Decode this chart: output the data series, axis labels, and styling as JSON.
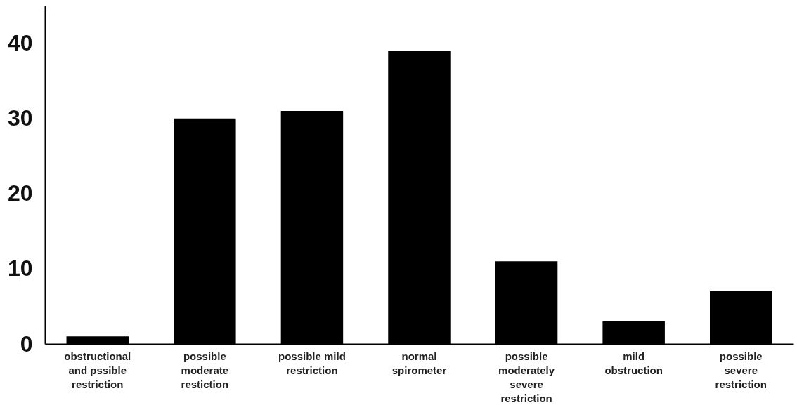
{
  "chart_data": {
    "type": "bar",
    "categories": [
      "obstructional and pssible restriction",
      "possible moderate restiction",
      "possible mild restriction",
      "normal spirometer",
      "possible moderately severe restriction",
      "mild obstruction",
      "possible severe restriction"
    ],
    "values": [
      1,
      30,
      31,
      39,
      11,
      3,
      7
    ],
    "color": "#000000",
    "ylim": [
      0,
      45
    ],
    "yticks": [
      0,
      10,
      20,
      30,
      40
    ],
    "grid": false
  }
}
